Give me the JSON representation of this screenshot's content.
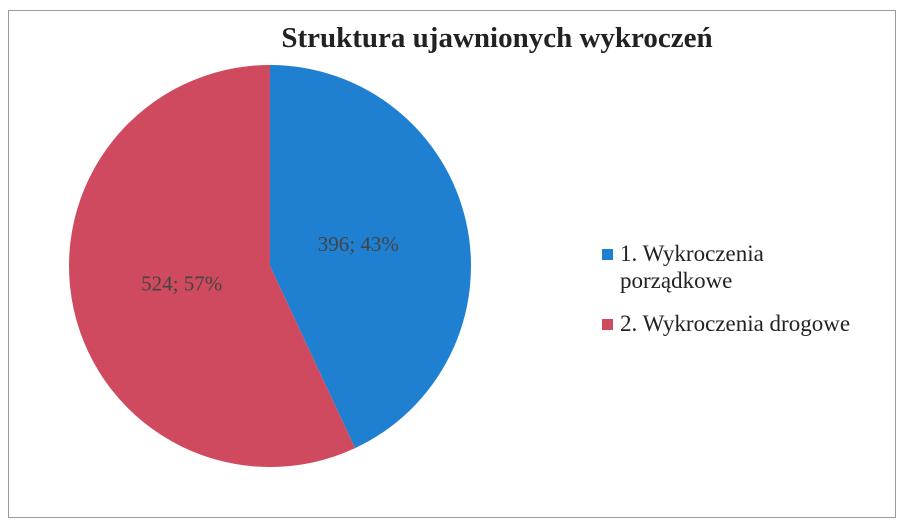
{
  "chart_data": {
    "type": "pie",
    "title": "Struktura ujawnionych wykroczeń",
    "categories": [
      "1. Wykroczenia porządkowe",
      "2. Wykroczenia drogowe"
    ],
    "values": [
      396,
      524
    ],
    "value_labels": [
      "396; 43%",
      "524; 57%"
    ],
    "colors": [
      "#1f7fd1",
      "#cf4a5e"
    ],
    "legend": "right"
  }
}
